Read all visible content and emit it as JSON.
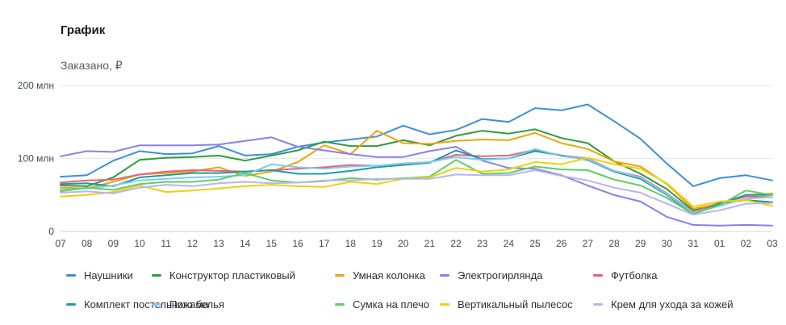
{
  "header": {
    "title": "График",
    "ylabel": "Заказано, ₽"
  },
  "chart_data": {
    "type": "line",
    "title": "График",
    "ylabel": "Заказано, ₽",
    "xlabel": "",
    "ylim": [
      0,
      200
    ],
    "yticks": [
      {
        "value": 0,
        "label": "0"
      },
      {
        "value": 100,
        "label": "100 млн"
      },
      {
        "value": 200,
        "label": "200 млн"
      }
    ],
    "categories": [
      "07",
      "08",
      "09",
      "10",
      "11",
      "12",
      "13",
      "14",
      "15",
      "16",
      "17",
      "18",
      "19",
      "20",
      "21",
      "22",
      "23",
      "24",
      "25",
      "26",
      "27",
      "28",
      "29",
      "30",
      "31",
      "01",
      "02",
      "03"
    ],
    "weekend_color": "#e8643c",
    "weekend_categories": [
      "07",
      "08",
      "14",
      "15",
      "21",
      "22",
      "28",
      "29"
    ],
    "legend_position": "bottom",
    "series": [
      {
        "name": "Наушники",
        "color": "#3a8fe0",
        "values": [
          75,
          77,
          97,
          110,
          106,
          107,
          117,
          104,
          106,
          116,
          122,
          126,
          130,
          145,
          133,
          139,
          154,
          150,
          169,
          166,
          174,
          151,
          127,
          93,
          62,
          73,
          77,
          70
        ]
      },
      {
        "name": "Конструктор пластиковый",
        "color": "#2e9c3c",
        "values": [
          63,
          62,
          74,
          98,
          101,
          102,
          104,
          97,
          104,
          111,
          123,
          117,
          117,
          125,
          118,
          131,
          138,
          134,
          140,
          128,
          121,
          96,
          79,
          58,
          29,
          39,
          43,
          40
        ]
      },
      {
        "name": "Умная колонка",
        "color": "#f0a30a",
        "values": [
          60,
          59,
          68,
          78,
          80,
          82,
          88,
          76,
          82,
          95,
          118,
          106,
          138,
          121,
          120,
          124,
          126,
          125,
          135,
          121,
          113,
          96,
          89,
          65,
          31,
          38,
          50,
          52
        ]
      },
      {
        "name": "Электрогирлянда",
        "color": "#8b7fe8",
        "values": [
          103,
          110,
          109,
          118,
          118,
          118,
          119,
          124,
          129,
          116,
          111,
          106,
          102,
          102,
          110,
          116,
          97,
          87,
          86,
          77,
          63,
          50,
          41,
          20,
          9,
          8,
          9,
          8
        ]
      },
      {
        "name": "Футболка",
        "color": "#e8637a",
        "values": [
          67,
          70,
          71,
          78,
          82,
          84,
          83,
          82,
          84,
          86,
          88,
          91,
          90,
          93,
          95,
          105,
          103,
          104,
          112,
          104,
          100,
          83,
          75,
          52,
          27,
          38,
          48,
          47
        ]
      },
      {
        "name": "Комплект постельного белья",
        "color": "#209aa0",
        "values": [
          65,
          66,
          62,
          74,
          77,
          80,
          80,
          82,
          84,
          79,
          79,
          83,
          88,
          91,
          94,
          111,
          99,
          100,
          110,
          104,
          98,
          82,
          72,
          50,
          24,
          38,
          50,
          50
        ]
      },
      {
        "name": "Пижама",
        "color": "#7ecbf2",
        "values": [
          57,
          59,
          63,
          70,
          72,
          74,
          75,
          77,
          92,
          88,
          86,
          89,
          90,
          93,
          95,
          102,
          98,
          100,
          113,
          103,
          99,
          83,
          74,
          51,
          26,
          35,
          45,
          47
        ]
      },
      {
        "name": "Сумка на плечо",
        "color": "#5fce64",
        "values": [
          55,
          60,
          57,
          65,
          68,
          68,
          71,
          80,
          70,
          67,
          69,
          73,
          71,
          73,
          75,
          98,
          79,
          80,
          89,
          85,
          84,
          71,
          63,
          46,
          24,
          36,
          56,
          50
        ]
      },
      {
        "name": "Вертикальный пылесос",
        "color": "#efd10a",
        "values": [
          48,
          50,
          54,
          63,
          54,
          56,
          59,
          62,
          64,
          62,
          61,
          68,
          65,
          72,
          74,
          87,
          82,
          85,
          95,
          92,
          101,
          92,
          86,
          66,
          34,
          41,
          43,
          35
        ]
      },
      {
        "name": "Крем для ухода за кожей",
        "color": "#b9b4f0",
        "values": [
          53,
          55,
          52,
          60,
          64,
          62,
          66,
          68,
          66,
          67,
          70,
          70,
          72,
          72,
          72,
          78,
          77,
          77,
          84,
          76,
          70,
          60,
          53,
          38,
          23,
          29,
          38,
          39
        ]
      }
    ]
  }
}
